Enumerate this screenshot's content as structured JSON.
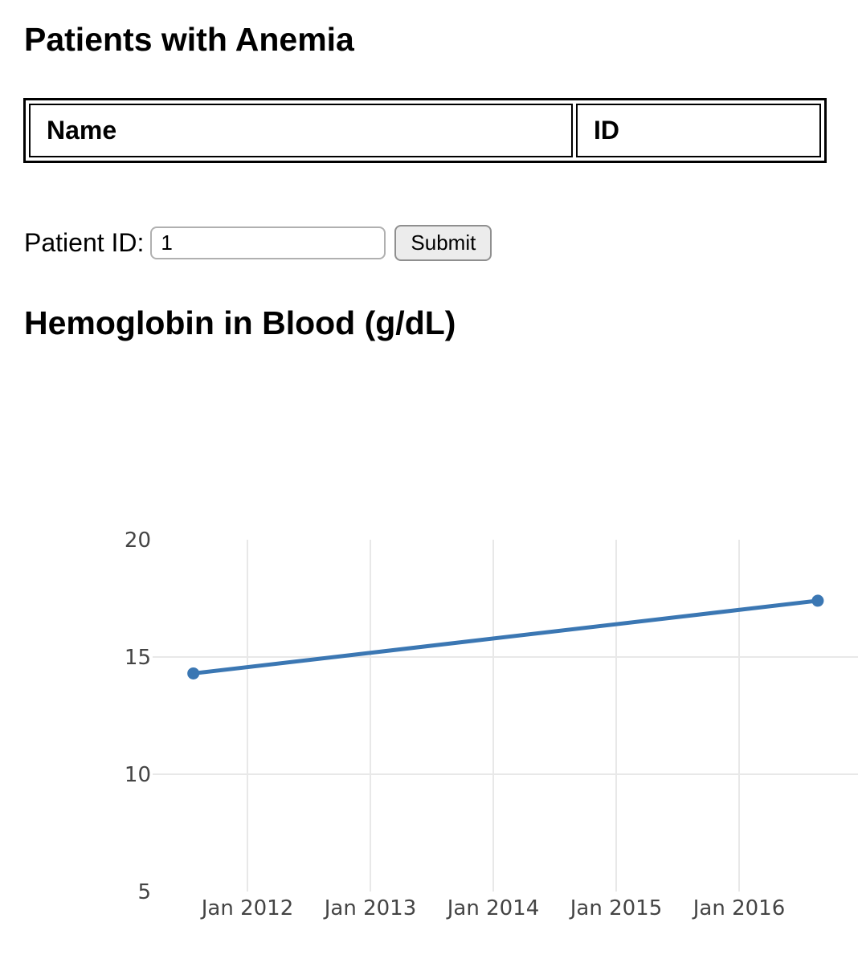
{
  "page": {
    "title": "Patients with Anemia"
  },
  "patients_table": {
    "columns": [
      "Name",
      "ID"
    ],
    "rows": []
  },
  "form": {
    "label": "Patient ID:",
    "input_value": "1",
    "submit_label": "Submit"
  },
  "chart_data": {
    "type": "line",
    "title": "Hemoglobin in Blood (g/dL)",
    "xlabel": "",
    "ylabel": "",
    "ylim": [
      5,
      20
    ],
    "xlim_years": [
      2011.23,
      2016.97
    ],
    "y_ticks": [
      5,
      10,
      15,
      20
    ],
    "y_gridlines": [
      10,
      15
    ],
    "x_ticks": [
      {
        "year": 2012,
        "label": "Jan 2012"
      },
      {
        "year": 2013,
        "label": "Jan 2013"
      },
      {
        "year": 2014,
        "label": "Jan 2014"
      },
      {
        "year": 2015,
        "label": "Jan 2015"
      },
      {
        "year": 2016,
        "label": "Jan 2016"
      }
    ],
    "grid": true,
    "legend": "none",
    "series": [
      {
        "name": "Hemoglobin (g/dL)",
        "points": [
          {
            "x_year": 2011.56,
            "x_approx": "Jul 2011",
            "y": 14.3
          },
          {
            "x_year": 2016.64,
            "x_approx": "Aug 2016",
            "y": 17.4
          }
        ]
      }
    ],
    "colors": {
      "line": "#3b77b3",
      "grid": "#e8e8e8",
      "tick_label": "#444444"
    }
  }
}
